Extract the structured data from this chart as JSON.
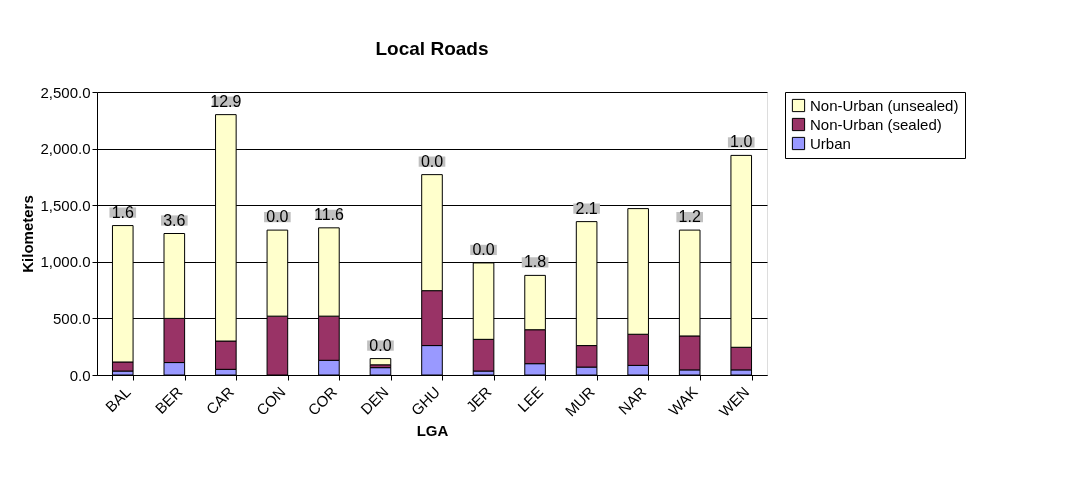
{
  "chart_data": {
    "type": "bar",
    "title": "Local Roads",
    "xlabel": "LGA",
    "ylabel": "Kilometers",
    "stacked": true,
    "categories": [
      "BAL",
      "BER",
      "CAR",
      "CON",
      "COR",
      "DEN",
      "GHU",
      "JER",
      "LEE",
      "MUR",
      "NAR",
      "WAK",
      "WEN"
    ],
    "series": [
      {
        "name": "Urban",
        "color": "#9999ff",
        "values": [
          35,
          110,
          50,
          0,
          130,
          65,
          260,
          35,
          100,
          70,
          85,
          45,
          45
        ]
      },
      {
        "name": "Non-Urban (sealed)",
        "color": "#993366",
        "values": [
          80,
          390,
          250,
          520,
          390,
          25,
          485,
          280,
          300,
          190,
          275,
          300,
          200
        ]
      },
      {
        "name": "Non-Urban (unsealed)",
        "color": "#ffffcc",
        "values": [
          1205,
          750,
          2000,
          760,
          780,
          55,
          1025,
          675,
          480,
          1095,
          1110,
          935,
          1695
        ]
      }
    ],
    "annotations": [
      {
        "text": "1.6",
        "x": "BAL",
        "y": 1320
      },
      {
        "text": "3.6",
        "x": "BER",
        "y": 1250
      },
      {
        "text": "12.9",
        "x": "CAR",
        "y": 2300
      },
      {
        "text": "0.0",
        "x": "CON",
        "y": 1280
      },
      {
        "text": "11.6",
        "x": "COR",
        "y": 1300
      },
      {
        "text": "0.0",
        "x": "DEN",
        "y": 145
      },
      {
        "text": "0.0",
        "x": "GHU",
        "y": 1770
      },
      {
        "text": "0.0",
        "x": "JER",
        "y": 990
      },
      {
        "text": "1.8",
        "x": "LEE",
        "y": 880
      },
      {
        "text": "2.1",
        "x": "MUR",
        "y": 1355
      },
      {
        "text": "1.2",
        "x": "WAK",
        "y": 1280
      },
      {
        "text": "1.0",
        "x": "WEN",
        "y": 1940
      }
    ],
    "ylim": [
      0,
      2500
    ],
    "yticks": [
      {
        "value": 0,
        "label": "0.0"
      },
      {
        "value": 500,
        "label": "500.0"
      },
      {
        "value": 1000,
        "label": "1,000.0"
      },
      {
        "value": 1500,
        "label": "1,500.0"
      },
      {
        "value": 2000,
        "label": "2,000.0"
      },
      {
        "value": 2500,
        "label": "2,500.0"
      }
    ],
    "grid": "y",
    "legend": "right"
  }
}
